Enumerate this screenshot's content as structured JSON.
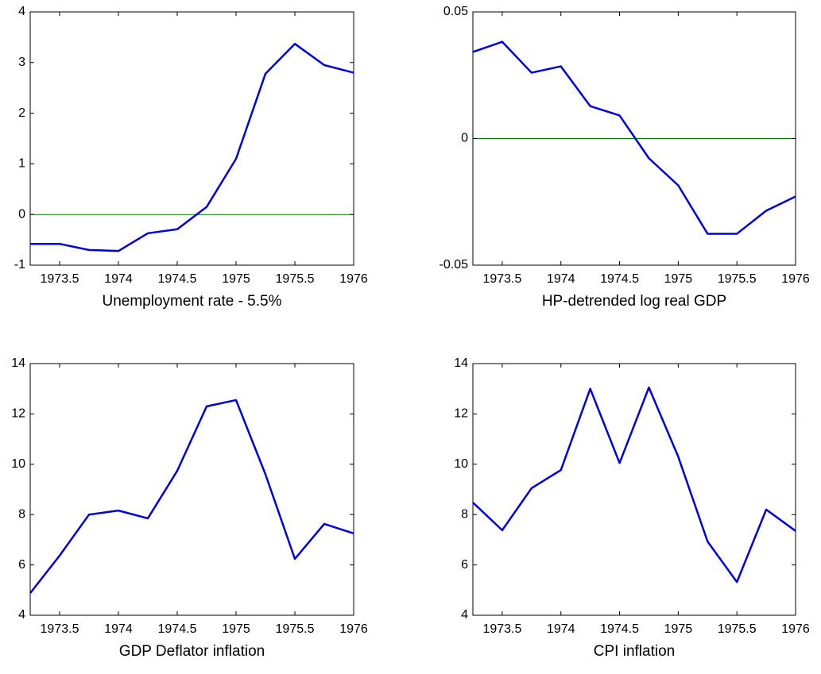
{
  "chart_data": [
    {
      "type": "line",
      "xlabel": "Unemployment rate - 5.5%",
      "x": [
        1973.25,
        1973.5,
        1973.75,
        1974,
        1974.25,
        1974.5,
        1974.75,
        1975,
        1975.25,
        1975.5,
        1975.75,
        1976
      ],
      "series": [
        {
          "name": "Unemployment rate - 5.5%",
          "color": "#0000e6",
          "values": [
            -0.58,
            -0.58,
            -0.7,
            -0.72,
            -0.37,
            -0.29,
            0.15,
            1.1,
            2.78,
            3.37,
            2.95,
            2.8
          ]
        }
      ],
      "xlim": [
        1973.25,
        1976
      ],
      "xticks": [
        1973.5,
        1974,
        1974.5,
        1975,
        1975.5,
        1976
      ],
      "ylim": [
        -1,
        4
      ],
      "yticks": [
        -1,
        0,
        1,
        2,
        3,
        4
      ],
      "reference_line": {
        "value": 0,
        "color": "#008000"
      }
    },
    {
      "type": "line",
      "xlabel": "HP-detrended log real GDP",
      "x": [
        1973.25,
        1973.5,
        1973.75,
        1974,
        1974.25,
        1974.5,
        1974.75,
        1975,
        1975.25,
        1975.5,
        1975.75,
        1976
      ],
      "series": [
        {
          "name": "HP-detrended log real GDP",
          "color": "#0000e6",
          "values": [
            0.0342,
            0.0382,
            0.026,
            0.0285,
            0.0128,
            0.0091,
            -0.0078,
            -0.0185,
            -0.0376,
            -0.0376,
            -0.0285,
            -0.0229
          ]
        }
      ],
      "xlim": [
        1973.25,
        1976
      ],
      "xticks": [
        1973.5,
        1974,
        1974.5,
        1975,
        1975.5,
        1976
      ],
      "ylim": [
        -0.05,
        0.05
      ],
      "yticks": [
        -0.05,
        0,
        0.05
      ],
      "reference_line": {
        "value": 0,
        "color": "#008000"
      }
    },
    {
      "type": "line",
      "xlabel": "GDP Deflator inflation",
      "x": [
        1973.25,
        1973.5,
        1973.75,
        1974,
        1974.25,
        1974.5,
        1974.75,
        1975,
        1975.25,
        1975.5,
        1975.75,
        1976
      ],
      "series": [
        {
          "name": "GDP Deflator inflation",
          "color": "#0000e6",
          "values": [
            4.88,
            6.37,
            8.0,
            8.16,
            7.85,
            9.74,
            12.3,
            12.55,
            9.6,
            6.24,
            7.63,
            7.25
          ]
        }
      ],
      "xlim": [
        1973.25,
        1976
      ],
      "xticks": [
        1973.5,
        1974,
        1974.5,
        1975,
        1975.5,
        1976
      ],
      "ylim": [
        4,
        14
      ],
      "yticks": [
        4,
        6,
        8,
        10,
        12,
        14
      ]
    },
    {
      "type": "line",
      "xlabel": "CPI inflation",
      "x": [
        1973.25,
        1973.5,
        1973.75,
        1974,
        1974.25,
        1974.5,
        1974.75,
        1975,
        1975.25,
        1975.5,
        1975.75,
        1976
      ],
      "series": [
        {
          "name": "CPI inflation",
          "color": "#0000e6",
          "values": [
            8.48,
            7.38,
            9.05,
            9.77,
            13.0,
            10.05,
            13.05,
            10.3,
            6.93,
            5.32,
            8.2,
            7.35
          ]
        }
      ],
      "xlim": [
        1973.25,
        1976
      ],
      "xticks": [
        1973.5,
        1974,
        1974.5,
        1975,
        1975.5,
        1976
      ],
      "ylim": [
        4,
        14
      ],
      "yticks": [
        4,
        6,
        8,
        10,
        12,
        14
      ]
    }
  ]
}
